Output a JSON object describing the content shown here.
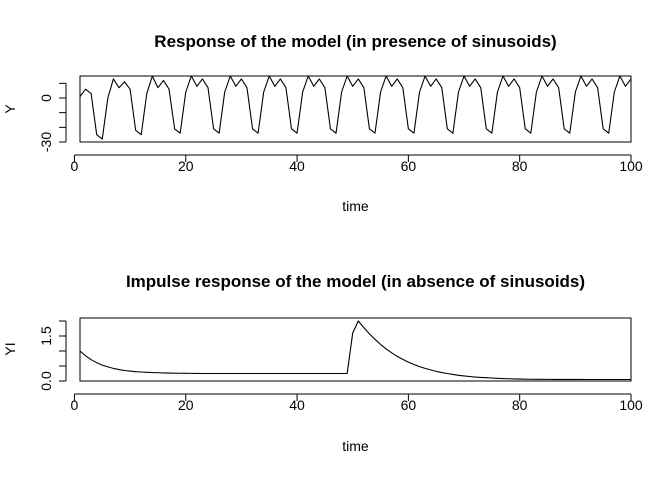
{
  "chart_data": [
    {
      "type": "line",
      "title": "Response of the model (in presence of sinusoids)",
      "xlabel": "time",
      "ylabel": "Y",
      "xlim": [
        1,
        100
      ],
      "ylim": [
        -30,
        15
      ],
      "xticks": [
        0,
        20,
        40,
        60,
        80,
        100
      ],
      "xtick_labels": [
        "0",
        "20",
        "40",
        "60",
        "80",
        "100"
      ],
      "yticks": [
        -30,
        -20,
        -10,
        0,
        10
      ],
      "ytick_labels": [
        "-30",
        "",
        "",
        "0",
        ""
      ],
      "grid": false,
      "x": [
        1,
        2,
        3,
        4,
        5,
        6,
        7,
        8,
        9,
        10,
        11,
        12,
        13,
        14,
        15,
        16,
        17,
        18,
        19,
        20,
        21,
        22,
        23,
        24,
        25,
        26,
        27,
        28,
        29,
        30,
        31,
        32,
        33,
        34,
        35,
        36,
        37,
        38,
        39,
        40,
        41,
        42,
        43,
        44,
        45,
        46,
        47,
        48,
        49,
        50,
        51,
        52,
        53,
        54,
        55,
        56,
        57,
        58,
        59,
        60,
        61,
        62,
        63,
        64,
        65,
        66,
        67,
        68,
        69,
        70,
        71,
        72,
        73,
        74,
        75,
        76,
        77,
        78,
        79,
        80,
        81,
        82,
        83,
        84,
        85,
        86,
        87,
        88,
        89,
        90,
        91,
        92,
        93,
        94,
        95,
        96,
        97,
        98,
        99,
        100
      ],
      "series": [
        {
          "values": [
            1,
            6,
            3,
            -25,
            -28,
            0,
            13,
            7,
            11,
            6,
            -22,
            -25,
            3,
            15,
            7,
            12,
            6,
            -21,
            -24,
            4,
            15,
            8,
            13,
            7,
            -21,
            -24,
            4,
            15,
            8,
            13,
            7,
            -21,
            -24,
            4,
            15,
            8,
            13,
            7,
            -21,
            -24,
            4,
            15,
            8,
            13,
            7,
            -21,
            -24,
            4,
            15,
            8,
            13,
            7,
            -21,
            -24,
            4,
            15,
            8,
            13,
            7,
            -21,
            -24,
            4,
            15,
            8,
            13,
            7,
            -21,
            -24,
            4,
            15,
            8,
            13,
            7,
            -21,
            -24,
            4,
            15,
            8,
            13,
            7,
            -21,
            -24,
            4,
            15,
            8,
            13,
            7,
            -21,
            -24,
            4,
            15,
            8,
            13,
            7,
            -21,
            -24,
            4,
            15,
            8,
            13
          ]
        }
      ]
    },
    {
      "type": "line",
      "title": "Impulse response of the model (in absence of sinusoids)",
      "xlabel": "time",
      "ylabel": "YI",
      "xlim": [
        1,
        100
      ],
      "ylim": [
        0,
        2.1
      ],
      "xticks": [
        0,
        20,
        40,
        60,
        80,
        100
      ],
      "xtick_labels": [
        "0",
        "20",
        "40",
        "60",
        "80",
        "100"
      ],
      "yticks": [
        0,
        0.5,
        1,
        1.5,
        2
      ],
      "ytick_labels": [
        "0.0",
        "",
        "",
        "1.5",
        ""
      ],
      "grid": false,
      "x": [
        1,
        2,
        3,
        4,
        5,
        6,
        7,
        8,
        9,
        10,
        11,
        12,
        13,
        14,
        15,
        16,
        17,
        18,
        19,
        20,
        21,
        22,
        23,
        24,
        25,
        26,
        27,
        28,
        29,
        30,
        31,
        32,
        33,
        34,
        35,
        36,
        37,
        38,
        39,
        40,
        41,
        42,
        43,
        44,
        45,
        46,
        47,
        48,
        49,
        50,
        51,
        52,
        53,
        54,
        55,
        56,
        57,
        58,
        59,
        60,
        61,
        62,
        63,
        64,
        65,
        66,
        67,
        68,
        69,
        70,
        71,
        72,
        73,
        74,
        75,
        76,
        77,
        78,
        79,
        80,
        81,
        82,
        83,
        84,
        85,
        86,
        87,
        88,
        89,
        90,
        91,
        92,
        93,
        94,
        95,
        96,
        97,
        98,
        99,
        100
      ],
      "series": [
        {
          "values": [
            1.0,
            0.84,
            0.71,
            0.61,
            0.53,
            0.47,
            0.42,
            0.38,
            0.35,
            0.33,
            0.31,
            0.3,
            0.29,
            0.28,
            0.275,
            0.27,
            0.265,
            0.26,
            0.258,
            0.256,
            0.254,
            0.252,
            0.25,
            0.25,
            0.25,
            0.25,
            0.25,
            0.25,
            0.25,
            0.25,
            0.25,
            0.25,
            0.25,
            0.25,
            0.25,
            0.25,
            0.25,
            0.25,
            0.25,
            0.25,
            0.25,
            0.25,
            0.25,
            0.25,
            0.25,
            0.25,
            0.25,
            0.25,
            0.25,
            1.6,
            2.0,
            1.78,
            1.57,
            1.39,
            1.22,
            1.07,
            0.94,
            0.82,
            0.72,
            0.63,
            0.55,
            0.48,
            0.42,
            0.37,
            0.32,
            0.28,
            0.25,
            0.22,
            0.19,
            0.17,
            0.15,
            0.13,
            0.12,
            0.11,
            0.1,
            0.09,
            0.08,
            0.075,
            0.07,
            0.065,
            0.06,
            0.058,
            0.056,
            0.055,
            0.054,
            0.053,
            0.052,
            0.052,
            0.051,
            0.051,
            0.051,
            0.05,
            0.05,
            0.05,
            0.05,
            0.05,
            0.05,
            0.05,
            0.05,
            0.05
          ]
        }
      ]
    }
  ]
}
